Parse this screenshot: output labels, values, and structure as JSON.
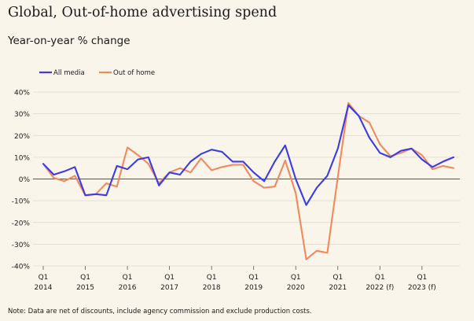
{
  "title": "Global, Out-of-home advertising spend",
  "subtitle": "Year-on-year % change",
  "note": "Note: Data are net of discounts, include agency commission and exclude production costs.",
  "chart_data": {
    "type": "line",
    "ylim": [
      -40,
      40
    ],
    "yticks": [
      -40,
      -30,
      -20,
      -10,
      0,
      10,
      20,
      30,
      40
    ],
    "ytick_labels": [
      "-40%",
      "-30%",
      "-20%",
      "-10%",
      "0%",
      "10%",
      "20%",
      "30%",
      "40%"
    ],
    "xticks": [
      {
        "x": "2014 Q1",
        "top": "Q1",
        "bottom": "2014"
      },
      {
        "x": "2015 Q1",
        "top": "Q1",
        "bottom": "2015"
      },
      {
        "x": "2016 Q1",
        "top": "Q1",
        "bottom": "2016"
      },
      {
        "x": "2017 Q1",
        "top": "Q1",
        "bottom": "2017"
      },
      {
        "x": "2018 Q1",
        "top": "Q1",
        "bottom": "2018"
      },
      {
        "x": "2019 Q1",
        "top": "Q1",
        "bottom": "2019"
      },
      {
        "x": "2020 Q1",
        "top": "Q1",
        "bottom": "2020"
      },
      {
        "x": "2021 Q1",
        "top": "Q1",
        "bottom": "2021"
      },
      {
        "x": "2022 Q1",
        "top": "Q1",
        "bottom": "2022 (f)"
      },
      {
        "x": "2023 Q1",
        "top": "Q1",
        "bottom": "2023 (f)"
      }
    ],
    "x": [
      "2014 Q1",
      "2014 Q2",
      "2014 Q3",
      "2014 Q4",
      "2015 Q1",
      "2015 Q2",
      "2015 Q3",
      "2015 Q4",
      "2016 Q1",
      "2016 Q2",
      "2016 Q3",
      "2016 Q4",
      "2017 Q1",
      "2017 Q2",
      "2017 Q3",
      "2017 Q4",
      "2018 Q1",
      "2018 Q2",
      "2018 Q3",
      "2018 Q4",
      "2019 Q1",
      "2019 Q2",
      "2019 Q3",
      "2019 Q4",
      "2020 Q1",
      "2020 Q2",
      "2020 Q3",
      "2020 Q4",
      "2021 Q1",
      "2021 Q2",
      "2021 Q3",
      "2021 Q4",
      "2022 Q1",
      "2022 Q2",
      "2022 Q3",
      "2022 Q4",
      "2023 Q1",
      "2023 Q2",
      "2023 Q3",
      "2023 Q4"
    ],
    "series": [
      {
        "name": "All media",
        "color": "#3b3be8",
        "values": [
          7,
          2,
          3.5,
          5.5,
          -7.5,
          -7,
          -7.5,
          6,
          4.5,
          9,
          10,
          -3,
          3,
          2,
          8,
          11.5,
          13.5,
          12.5,
          8,
          8,
          3,
          -1,
          8,
          15.5,
          0,
          -12,
          -4,
          1.5,
          14,
          34,
          29,
          19,
          12,
          10,
          13,
          14,
          9,
          5.5,
          8,
          10
        ]
      },
      {
        "name": "Out of home",
        "color": "#f08a5d",
        "values": [
          7,
          0.5,
          -1,
          1.5,
          -7.5,
          -7,
          -2,
          -3.5,
          14.5,
          11,
          7,
          -2,
          3,
          5,
          3,
          9.5,
          4,
          5.5,
          6.5,
          6.5,
          -1,
          -4,
          -3.5,
          8.5,
          -6.5,
          -37,
          -33,
          -34,
          1,
          35,
          29,
          26,
          16,
          10.5,
          12,
          14,
          11,
          4.5,
          6,
          5
        ]
      }
    ],
    "legend_position": "top-left",
    "grid": "horizontal"
  }
}
